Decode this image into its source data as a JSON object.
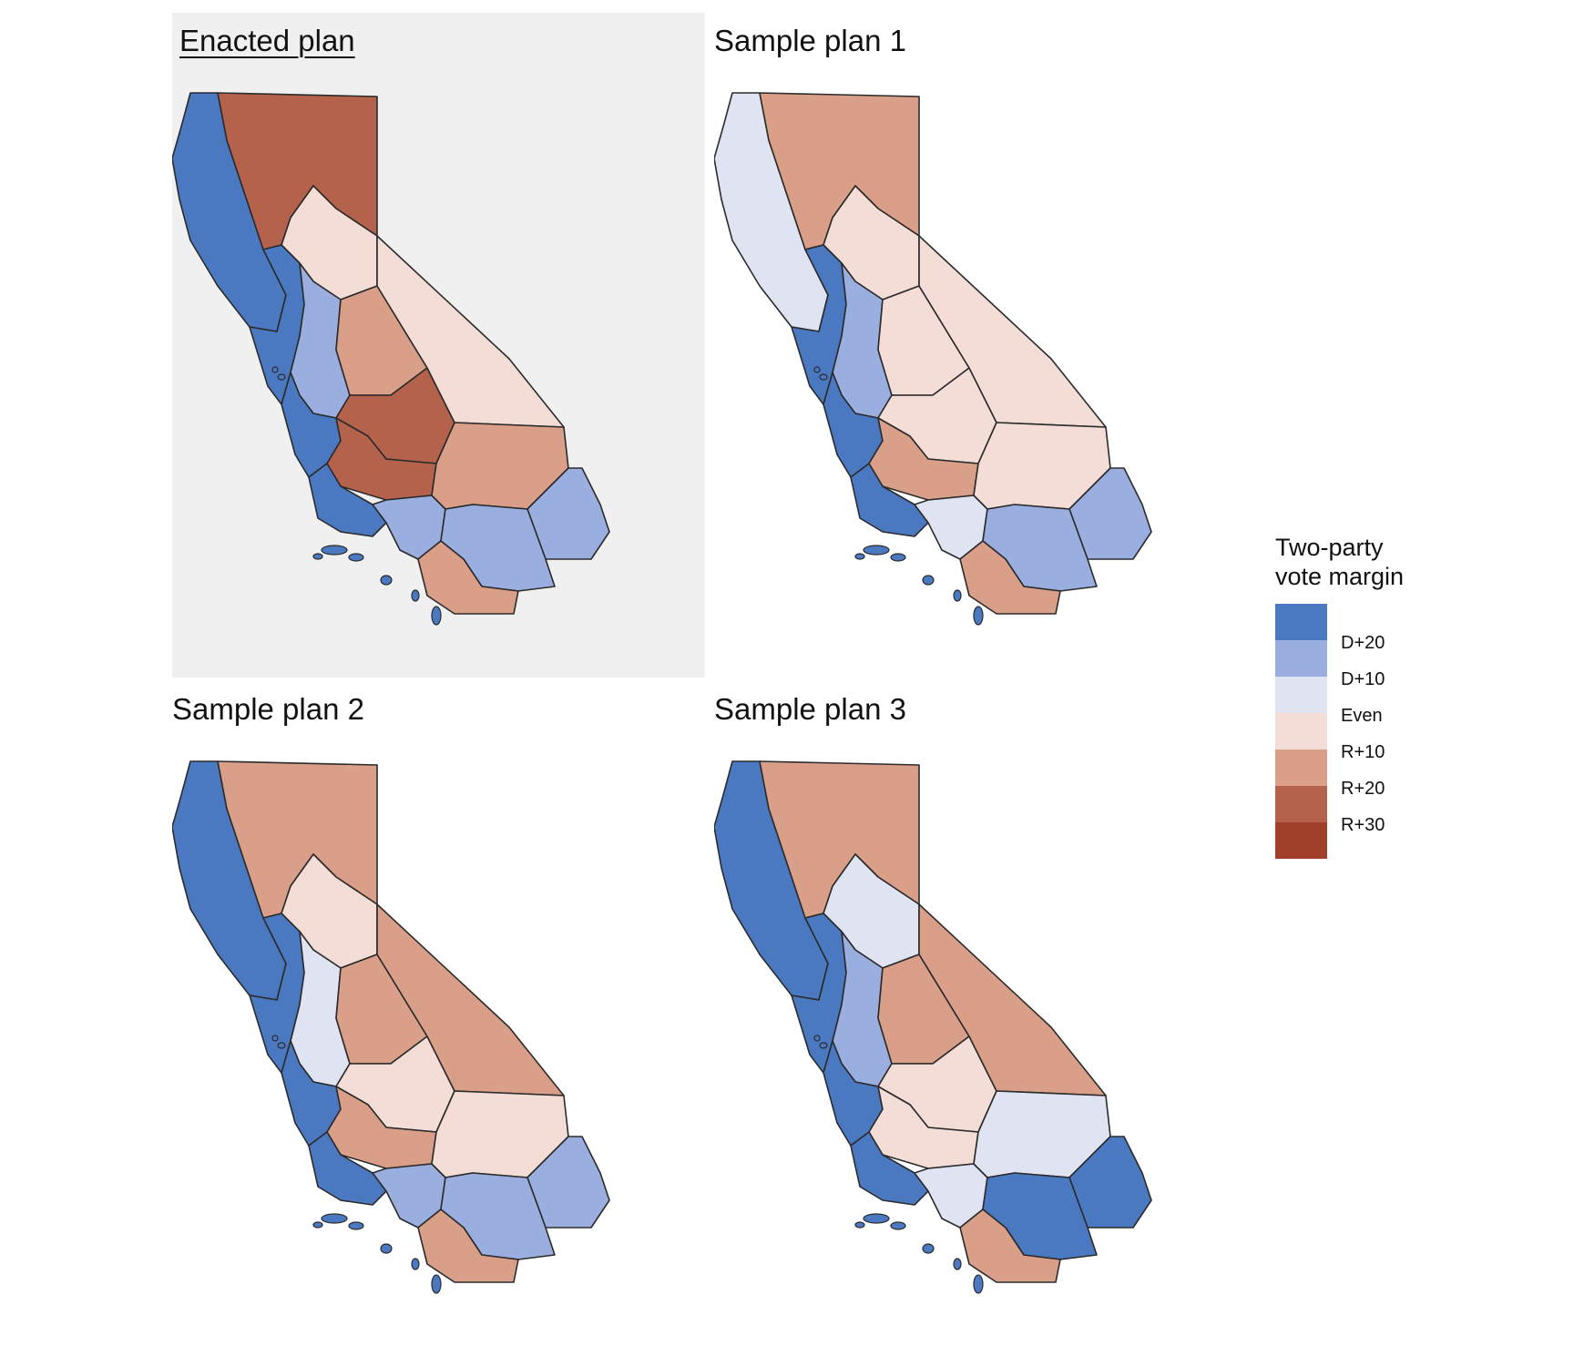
{
  "panels": [
    {
      "title": "Enacted plan",
      "highlighted": true
    },
    {
      "title": "Sample plan 1",
      "highlighted": false
    },
    {
      "title": "Sample plan 2",
      "highlighted": false
    },
    {
      "title": "Sample plan 3",
      "highlighted": false
    }
  ],
  "legend": {
    "title_line1": "Two-party",
    "title_line2": "vote margin",
    "colors": [
      "#4a79c2",
      "#9baee0",
      "#dfe3f2",
      "#f3ddd6",
      "#d99f89",
      "#b5624c",
      "#a0402a"
    ],
    "labels": [
      "D+20",
      "D+10",
      "Even",
      "R+10",
      "R+20",
      "R+30"
    ]
  },
  "region_colors": {
    "enacted": {
      "north_coast": "#4a79c2",
      "north_interior": "#b5624c",
      "sierra_north": "#f3ddd6",
      "bay": "#4a79c2",
      "valley_west": "#9baee0",
      "valley_east": "#d99f89",
      "central_south": "#b5624c",
      "east_desert": "#f3ddd6",
      "central_coast": "#4a79c2",
      "kern": "#b5624c",
      "south_coast": "#4a79c2",
      "la": "#9baee0",
      "riverside": "#d99f89",
      "imperial": "#9baee0",
      "san_diego": "#d99f89",
      "inland_east": "#9baee0"
    },
    "sample1": {
      "north_coast": "#dfe3f2",
      "north_interior": "#d99f89",
      "sierra_north": "#f3ddd6",
      "bay": "#4a79c2",
      "valley_west": "#9baee0",
      "valley_east": "#f3ddd6",
      "central_south": "#f3ddd6",
      "east_desert": "#f3ddd6",
      "central_coast": "#4a79c2",
      "kern": "#d99f89",
      "south_coast": "#4a79c2",
      "la": "#dfe3f2",
      "riverside": "#f3ddd6",
      "imperial": "#9baee0",
      "san_diego": "#d99f89",
      "inland_east": "#9baee0"
    },
    "sample2": {
      "north_coast": "#4a79c2",
      "north_interior": "#d99f89",
      "sierra_north": "#f3ddd6",
      "bay": "#4a79c2",
      "valley_west": "#dfe3f2",
      "valley_east": "#d99f89",
      "central_south": "#f3ddd6",
      "east_desert": "#d99f89",
      "central_coast": "#4a79c2",
      "kern": "#d99f89",
      "south_coast": "#4a79c2",
      "la": "#9baee0",
      "riverside": "#f3ddd6",
      "imperial": "#9baee0",
      "san_diego": "#d99f89",
      "inland_east": "#9baee0"
    },
    "sample3": {
      "north_coast": "#4a79c2",
      "north_interior": "#d99f89",
      "sierra_north": "#dfe3f2",
      "bay": "#4a79c2",
      "valley_west": "#9baee0",
      "valley_east": "#d99f89",
      "central_south": "#f3ddd6",
      "east_desert": "#d99f89",
      "central_coast": "#4a79c2",
      "kern": "#f3ddd6",
      "south_coast": "#4a79c2",
      "la": "#dfe3f2",
      "riverside": "#dfe3f2",
      "imperial": "#4a79c2",
      "san_diego": "#d99f89",
      "inland_east": "#4a79c2"
    }
  }
}
